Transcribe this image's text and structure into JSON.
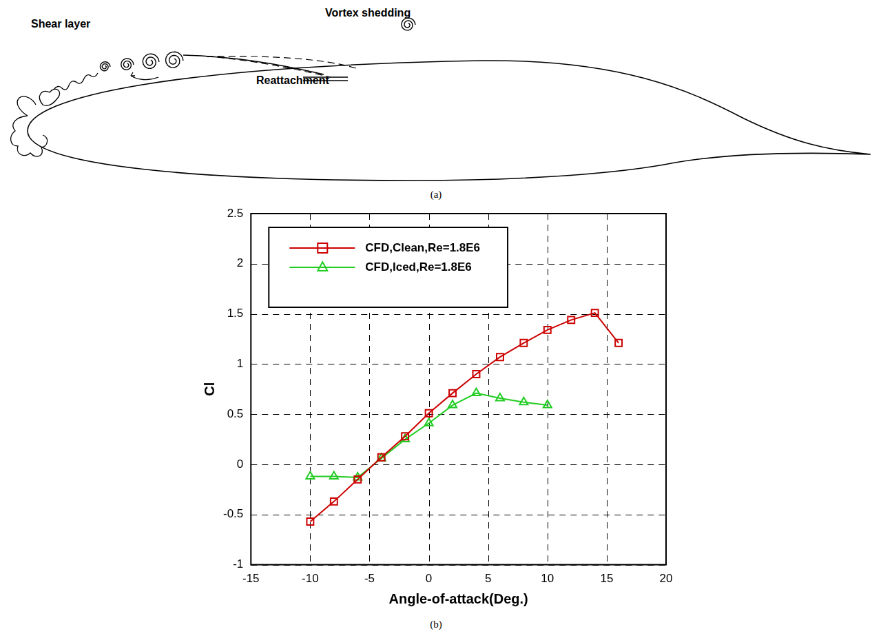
{
  "diagram": {
    "caption": "(a)",
    "labels": [
      "Shear layer",
      "Vortex shedding",
      "Reattachment"
    ]
  },
  "chart_data": {
    "type": "line",
    "caption": "(b)",
    "x_label": "Angle-of-attack(Deg.)",
    "y_label": "Cl",
    "x": [
      -10,
      -8,
      -6,
      -4,
      -2,
      0,
      2,
      4,
      6,
      8,
      10,
      12,
      14,
      16
    ],
    "series": [
      {
        "name": "CFD,Clean,Re=1.8E6",
        "color": "#cc0000",
        "marker": "square",
        "line_style": "solid",
        "values": [
          -0.57,
          -0.37,
          -0.15,
          0.07,
          0.28,
          0.51,
          0.71,
          0.9,
          1.07,
          1.21,
          1.34,
          1.44,
          1.51,
          1.21
        ]
      },
      {
        "name": "CFD,Iced,Re=1.8E6",
        "color": "#22cc22",
        "marker": "triangle",
        "line_style": "solid",
        "values": [
          -0.12,
          -0.12,
          -0.13,
          0.06,
          0.25,
          0.41,
          0.59,
          0.71,
          0.66,
          0.62,
          0.59,
          null,
          null,
          null
        ]
      }
    ],
    "xlim": [
      -15,
      20
    ],
    "xticks": [
      -15,
      -10,
      -5,
      0,
      5,
      10,
      15,
      20
    ],
    "ylim": [
      -1,
      2.5
    ],
    "yticks": [
      -1,
      -0.5,
      0,
      0.5,
      1,
      1.5,
      2,
      2.5
    ],
    "grid": true,
    "legend": "upper left"
  }
}
